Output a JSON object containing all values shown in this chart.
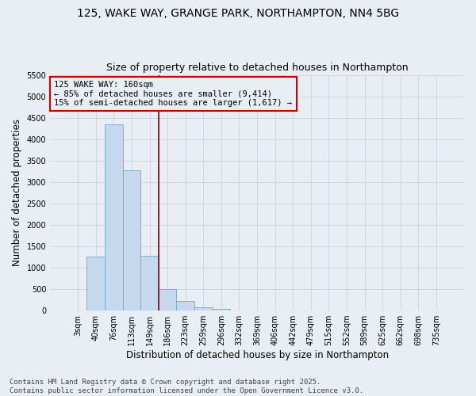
{
  "title1": "125, WAKE WAY, GRANGE PARK, NORTHAMPTON, NN4 5BG",
  "title2": "Size of property relative to detached houses in Northampton",
  "xlabel": "Distribution of detached houses by size in Northampton",
  "ylabel": "Number of detached properties",
  "categories": [
    "3sqm",
    "40sqm",
    "76sqm",
    "113sqm",
    "149sqm",
    "186sqm",
    "223sqm",
    "259sqm",
    "296sqm",
    "332sqm",
    "369sqm",
    "406sqm",
    "442sqm",
    "479sqm",
    "515sqm",
    "552sqm",
    "589sqm",
    "625sqm",
    "662sqm",
    "698sqm",
    "735sqm"
  ],
  "values": [
    0,
    1250,
    4350,
    3280,
    1280,
    500,
    215,
    75,
    30,
    0,
    0,
    0,
    0,
    0,
    0,
    0,
    0,
    0,
    0,
    0,
    0
  ],
  "bar_color": "#c5d8ed",
  "bar_edge_color": "#6aaad4",
  "grid_color": "#c8d4e0",
  "background_color": "#e8eef4",
  "vline_x_index": 4.5,
  "vline_color": "#8b0000",
  "annotation_text": "125 WAKE WAY: 160sqm\n← 85% of detached houses are smaller (9,414)\n15% of semi-detached houses are larger (1,617) →",
  "annotation_box_facecolor": "#e8eef4",
  "annotation_box_edgecolor": "#cc0000",
  "ylim": [
    0,
    5500
  ],
  "yticks": [
    0,
    500,
    1000,
    1500,
    2000,
    2500,
    3000,
    3500,
    4000,
    4500,
    5000,
    5500
  ],
  "footer1": "Contains HM Land Registry data © Crown copyright and database right 2025.",
  "footer2": "Contains public sector information licensed under the Open Government Licence v3.0.",
  "title_fontsize": 10,
  "subtitle_fontsize": 9,
  "axis_label_fontsize": 8.5,
  "tick_fontsize": 7,
  "annotation_fontsize": 7.5,
  "footer_fontsize": 6.5
}
